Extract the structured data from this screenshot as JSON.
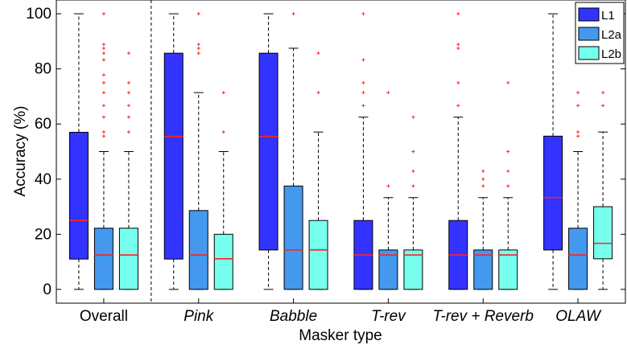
{
  "chart_data": {
    "type": "box",
    "xlabel": "Masker type",
    "ylabel": "Accuracy (%)",
    "ylim": [
      -5,
      105
    ],
    "yticks": [
      0,
      20,
      40,
      60,
      80,
      100
    ],
    "grid": false,
    "legend_position": "top-right",
    "categories": [
      {
        "label": "Overall",
        "italic": false
      },
      {
        "label": "Pink",
        "italic": true
      },
      {
        "label": "Babble",
        "italic": true
      },
      {
        "label": "T-rev",
        "italic": true
      },
      {
        "label": "T-rev + Reverb",
        "italic": true
      },
      {
        "label": "OLAW",
        "italic": true
      }
    ],
    "series": [
      {
        "name": "L1",
        "color": "#3333ff",
        "boxes": [
          {
            "q1": 11,
            "median": 25,
            "q3": 57,
            "whisker_low": 0,
            "whisker_high": 100,
            "outliers": []
          },
          {
            "q1": 11,
            "median": 55.5,
            "q3": 85.7,
            "whisker_low": 0,
            "whisker_high": 100,
            "outliers": []
          },
          {
            "q1": 14.3,
            "median": 55.5,
            "q3": 85.7,
            "whisker_low": 0,
            "whisker_high": 100,
            "outliers": []
          },
          {
            "q1": 0,
            "median": 12.5,
            "q3": 25,
            "whisker_low": 0,
            "whisker_high": 62.5,
            "outliers": [
              66.7,
              71.4,
              75,
              83.3,
              100
            ]
          },
          {
            "q1": 0,
            "median": 12.5,
            "q3": 25,
            "whisker_low": 0,
            "whisker_high": 62.5,
            "outliers": [
              66.7,
              75,
              87.5,
              88.9,
              100
            ]
          },
          {
            "q1": 14.3,
            "median": 33.3,
            "q3": 55.6,
            "whisker_low": 0,
            "whisker_high": 100,
            "outliers": []
          }
        ]
      },
      {
        "name": "L2a",
        "color": "#4499ee",
        "boxes": [
          {
            "q1": 0,
            "median": 12.5,
            "q3": 22.2,
            "whisker_low": 0,
            "whisker_high": 50,
            "outliers": [
              55.6,
              57.1,
              62.5,
              66.7,
              71.4,
              75,
              77.8,
              83.3,
              85.7,
              87.5,
              88.9,
              100
            ]
          },
          {
            "q1": 0,
            "median": 12.5,
            "q3": 28.6,
            "whisker_low": 0,
            "whisker_high": 71.4,
            "outliers": [
              85.7,
              87.5,
              88.9,
              100
            ]
          },
          {
            "q1": 0,
            "median": 14.3,
            "q3": 37.5,
            "whisker_low": 0,
            "whisker_high": 87.5,
            "outliers": [
              100
            ]
          },
          {
            "q1": 0,
            "median": 12.5,
            "q3": 14.3,
            "whisker_low": 0,
            "whisker_high": 33.3,
            "outliers": [
              37.5,
              71.4
            ]
          },
          {
            "q1": 0,
            "median": 12.5,
            "q3": 14.3,
            "whisker_low": 0,
            "whisker_high": 33.3,
            "outliers": [
              37.5,
              40,
              42.9
            ]
          },
          {
            "q1": 0,
            "median": 12.5,
            "q3": 22.2,
            "whisker_low": 0,
            "whisker_high": 50,
            "outliers": [
              55.6,
              57.1,
              66.7,
              71.4
            ]
          }
        ]
      },
      {
        "name": "L2b",
        "color": "#77ffee",
        "boxes": [
          {
            "q1": 0,
            "median": 12.5,
            "q3": 22.2,
            "whisker_low": 0,
            "whisker_high": 50,
            "outliers": [
              57.1,
              62.5,
              66.7,
              71.4,
              75,
              85.7
            ]
          },
          {
            "q1": 0,
            "median": 11.1,
            "q3": 20,
            "whisker_low": 0,
            "whisker_high": 50,
            "outliers": [
              57.1,
              71.4
            ]
          },
          {
            "q1": 0,
            "median": 14.3,
            "q3": 25,
            "whisker_low": 0,
            "whisker_high": 57.1,
            "outliers": [
              71.4,
              85.7
            ]
          },
          {
            "q1": 0,
            "median": 12.5,
            "q3": 14.3,
            "whisker_low": 0,
            "whisker_high": 33.3,
            "outliers": [
              37.5,
              42.9,
              50,
              62.5
            ]
          },
          {
            "q1": 0,
            "median": 12.5,
            "q3": 14.3,
            "whisker_low": 0,
            "whisker_high": 33.3,
            "outliers": [
              37.5,
              42.9,
              50,
              75
            ]
          },
          {
            "q1": 11.1,
            "median": 16.7,
            "q3": 30,
            "whisker_low": 0,
            "whisker_high": 57.1,
            "outliers": [
              66.7,
              71.4
            ]
          }
        ]
      }
    ],
    "median_color": "#ff2222",
    "outlier_color": "#ff2222"
  }
}
